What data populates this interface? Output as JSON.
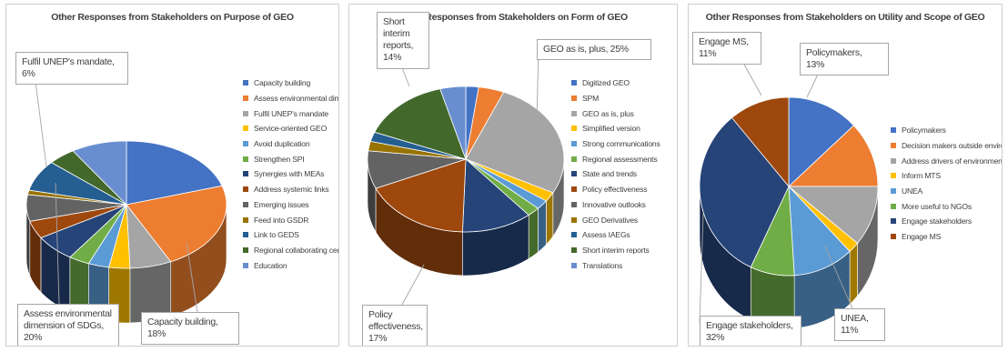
{
  "chart_data": [
    {
      "type": "pie",
      "title": "Other Responses from Stakeholders on Purpose of GEO",
      "categories": [
        "Capacity building",
        "Assess environmental dimension of SDGs",
        "Fulfil UNEP's mandate",
        "Service-oriented GEO",
        "Avoid duplication",
        "Strengthen SPI",
        "Synergies with MEAs",
        "Address systemic links",
        "Emerging issues",
        "Feed into GSDR",
        "Link to GEDS",
        "Regional collaborating centres",
        "Education"
      ],
      "values": [
        18,
        20,
        6,
        3,
        3,
        3,
        6,
        4,
        6,
        1,
        7,
        4,
        8
      ],
      "colors": [
        "#4472C4",
        "#ED7D31",
        "#A5A5A5",
        "#FFC000",
        "#5B9BD5",
        "#70AD47",
        "#264478",
        "#9E480E",
        "#636363",
        "#997300",
        "#255E91",
        "#43682B",
        "#698ED0"
      ],
      "data_labels": [
        {
          "category": "Capacity building",
          "text": "Capacity building, 18%"
        },
        {
          "category": "Assess environmental dimension of SDGs",
          "text": "Assess environmental dimension of SDGs, 20%"
        },
        {
          "category": "Fulfil UNEP's mandate",
          "text": "Fulfil UNEP's mandate, 6%"
        }
      ],
      "legend_position": "right"
    },
    {
      "type": "pie",
      "title": "Other Responses from Stakeholders on Form of GEO",
      "categories": [
        "Digitized GEO",
        "SPM",
        "GEO as is, plus",
        "Simplified version",
        "Strong communications",
        "Regional assessments",
        "State and trends",
        "Policy effectiveness",
        "Innovative outlooks",
        "GEO Derivatives",
        "Assess IAEGs",
        "Short interim reports",
        "Translations"
      ],
      "values": [
        2,
        4,
        25,
        2,
        2,
        2,
        11,
        17,
        8,
        2,
        2,
        14,
        4
      ],
      "colors": [
        "#4472C4",
        "#ED7D31",
        "#A5A5A5",
        "#FFC000",
        "#5B9BD5",
        "#70AD47",
        "#264478",
        "#9E480E",
        "#636363",
        "#997300",
        "#255E91",
        "#43682B",
        "#698ED0"
      ],
      "data_labels": [
        {
          "category": "GEO as is, plus",
          "text": "GEO as is, plus, 25%"
        },
        {
          "category": "Policy effectiveness",
          "text": "Policy effectiveness, 17%"
        },
        {
          "category": "Short interim reports",
          "text": "Short interim reports, 14%"
        }
      ],
      "legend_position": "right"
    },
    {
      "type": "pie",
      "title": "Other Responses from Stakeholders on Utility and Scope of GEO",
      "categories": [
        "Policymakers",
        "Decision makers outside environment",
        "Address drivers of environmental change",
        "Inform MTS",
        "UNEA",
        "More useful to NGOs",
        "Engage stakeholders",
        "Engage MS"
      ],
      "values": [
        13,
        12,
        11,
        2,
        11,
        8,
        32,
        11
      ],
      "colors": [
        "#4472C4",
        "#ED7D31",
        "#A5A5A5",
        "#FFC000",
        "#5B9BD5",
        "#70AD47",
        "#264478",
        "#9E480E"
      ],
      "data_labels": [
        {
          "category": "Policymakers",
          "text": "Policymakers, 13%"
        },
        {
          "category": "UNEA",
          "text": "UNEA, 11%"
        },
        {
          "category": "Engage stakeholders",
          "text": "Engage stakeholders, 32%"
        },
        {
          "category": "Engage MS",
          "text": "Engage MS, 11%"
        }
      ],
      "legend_position": "right"
    }
  ]
}
